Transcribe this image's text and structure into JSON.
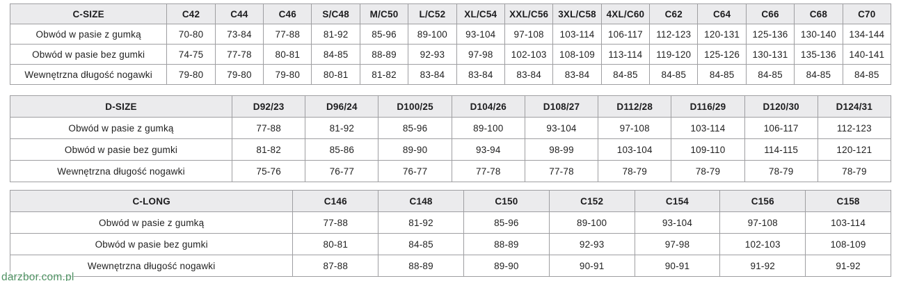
{
  "watermark": "darzbor.com.pl",
  "colors": {
    "header_bg": "#ebebed",
    "border": "#9e9ea1",
    "text": "#1f1f1f",
    "watermark_green": "#4e9162"
  },
  "tables": [
    {
      "name": "C-SIZE",
      "columns": [
        "C42",
        "C44",
        "C46",
        "S/C48",
        "M/C50",
        "L/C52",
        "XL/C54",
        "XXL/C56",
        "3XL/C58",
        "4XL/C60",
        "C62",
        "C64",
        "C66",
        "C68",
        "C70"
      ],
      "rows": [
        {
          "label": "Obwód w pasie z gumką",
          "values": [
            "70-80",
            "73-84",
            "77-88",
            "81-92",
            "85-96",
            "89-100",
            "93-104",
            "97-108",
            "103-114",
            "106-117",
            "112-123",
            "120-131",
            "125-136",
            "130-140",
            "134-144"
          ]
        },
        {
          "label": "Obwód w pasie bez gumki",
          "values": [
            "74-75",
            "77-78",
            "80-81",
            "84-85",
            "88-89",
            "92-93",
            "97-98",
            "102-103",
            "108-109",
            "113-114",
            "119-120",
            "125-126",
            "130-131",
            "135-136",
            "140-141"
          ]
        },
        {
          "label": "Wewnętrzna długość nogawki",
          "values": [
            "79-80",
            "79-80",
            "79-80",
            "80-81",
            "81-82",
            "83-84",
            "83-84",
            "83-84",
            "83-84",
            "84-85",
            "84-85",
            "84-85",
            "84-85",
            "84-85",
            "84-85"
          ]
        }
      ]
    },
    {
      "name": "D-SIZE",
      "columns": [
        "D92/23",
        "D96/24",
        "D100/25",
        "D104/26",
        "D108/27",
        "D112/28",
        "D116/29",
        "D120/30",
        "D124/31"
      ],
      "rows": [
        {
          "label": "Obwód w pasie z gumką",
          "values": [
            "77-88",
            "81-92",
            "85-96",
            "89-100",
            "93-104",
            "97-108",
            "103-114",
            "106-117",
            "112-123"
          ]
        },
        {
          "label": "Obwód w pasie bez gumki",
          "values": [
            "81-82",
            "85-86",
            "89-90",
            "93-94",
            "98-99",
            "103-104",
            "109-110",
            "114-115",
            "120-121"
          ]
        },
        {
          "label": "Wewnętrzna długość nogawki",
          "values": [
            "75-76",
            "76-77",
            "76-77",
            "77-78",
            "77-78",
            "78-79",
            "78-79",
            "78-79",
            "78-79"
          ]
        }
      ]
    },
    {
      "name": "C-LONG",
      "columns": [
        "C146",
        "C148",
        "C150",
        "C152",
        "C154",
        "C156",
        "C158"
      ],
      "rows": [
        {
          "label": "Obwód w pasie z gumką",
          "values": [
            "77-88",
            "81-92",
            "85-96",
            "89-100",
            "93-104",
            "97-108",
            "103-114"
          ]
        },
        {
          "label": "Obwód w pasie bez gumki",
          "values": [
            "80-81",
            "84-85",
            "88-89",
            "92-93",
            "97-98",
            "102-103",
            "108-109"
          ]
        },
        {
          "label": "Wewnętrzna długość nogawki",
          "values": [
            "87-88",
            "88-89",
            "89-90",
            "90-91",
            "90-91",
            "91-92",
            "91-92"
          ]
        }
      ]
    }
  ]
}
